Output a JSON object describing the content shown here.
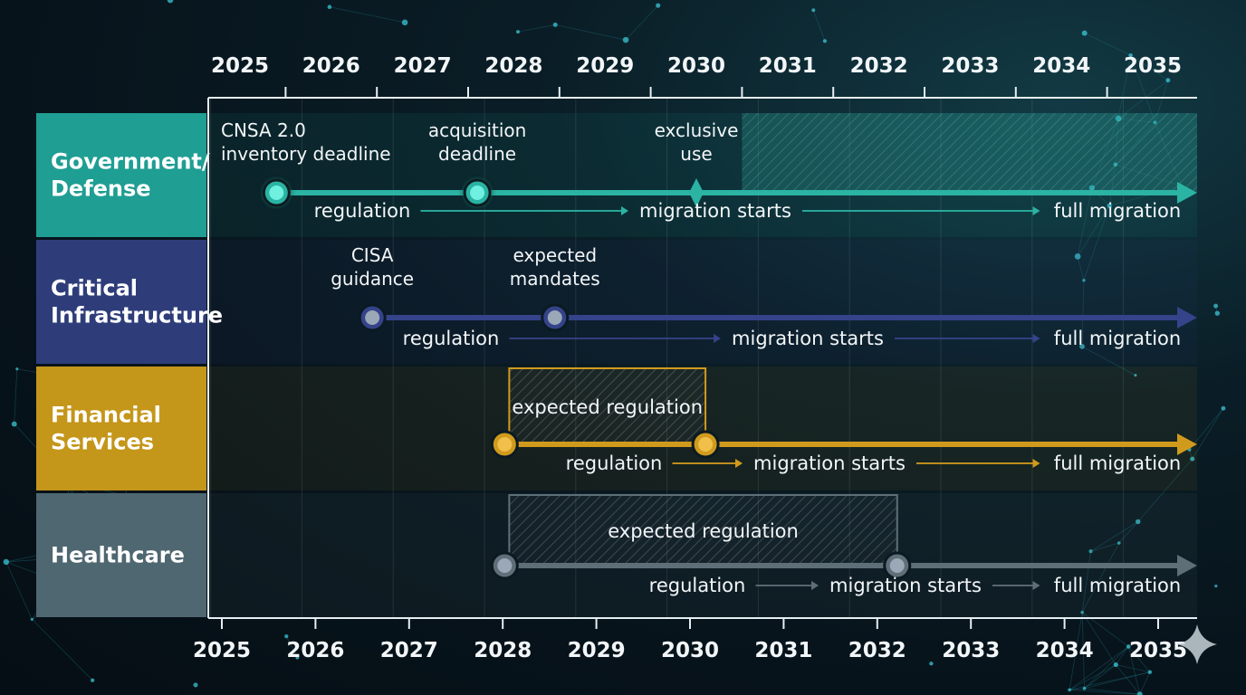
{
  "colors": {
    "gov": "#1f9e93",
    "crit": "#2e3d7a",
    "fin": "#c4961a",
    "health": "#4f6770",
    "gov_line": "#2bb3a3",
    "crit_line": "#34438a",
    "fin_line": "#d09a1d",
    "health_line": "#5f6f78"
  },
  "years": [
    "2025",
    "2026",
    "2027",
    "2028",
    "2029",
    "2030",
    "2031",
    "2032",
    "2033",
    "2034",
    "2035"
  ],
  "rows": [
    {
      "key": "gov",
      "label_lines": [
        "Government/",
        "Defense"
      ],
      "events": [
        {
          "year": 2025.4,
          "lines": [
            "CNSA 2.0",
            "inventory deadline"
          ],
          "marker": "dot"
        },
        {
          "year": 2027.6,
          "lines": [
            "acquisition",
            "deadline"
          ],
          "marker": "dot"
        },
        {
          "year": 2030.0,
          "lines": [
            "exclusive",
            "use"
          ],
          "marker": "diamond"
        }
      ],
      "band": {
        "from": 2030.5,
        "to": 2035.5,
        "label": ""
      },
      "phases": [
        "regulation",
        "migration starts",
        "full migration"
      ]
    },
    {
      "key": "crit",
      "label_lines": [
        "Critical",
        "Infrastructure"
      ],
      "events": [
        {
          "year": 2026.45,
          "lines": [
            "CISA",
            "guidance"
          ],
          "marker": "dot"
        },
        {
          "year": 2028.45,
          "lines": [
            "expected",
            "mandates"
          ],
          "marker": "dot"
        }
      ],
      "band": null,
      "phases": [
        "regulation",
        "migration starts",
        "full migration"
      ]
    },
    {
      "key": "fin",
      "label_lines": [
        "Financial",
        "Services"
      ],
      "events": [
        {
          "year": 2027.9,
          "lines": [],
          "marker": "dot"
        },
        {
          "year": 2030.1,
          "lines": [],
          "marker": "dot"
        }
      ],
      "band": {
        "from": 2027.95,
        "to": 2030.1,
        "label": "expected regulation"
      },
      "phases": [
        "regulation",
        "migration starts",
        "full migration"
      ]
    },
    {
      "key": "health",
      "label_lines": [
        "Healthcare"
      ],
      "events": [
        {
          "year": 2027.9,
          "lines": [],
          "marker": "dot"
        },
        {
          "year": 2032.2,
          "lines": [],
          "marker": "dot"
        }
      ],
      "band": {
        "from": 2027.95,
        "to": 2032.2,
        "label": "expected regulation"
      },
      "phases": [
        "regulation",
        "migration starts",
        "full migration"
      ]
    }
  ]
}
